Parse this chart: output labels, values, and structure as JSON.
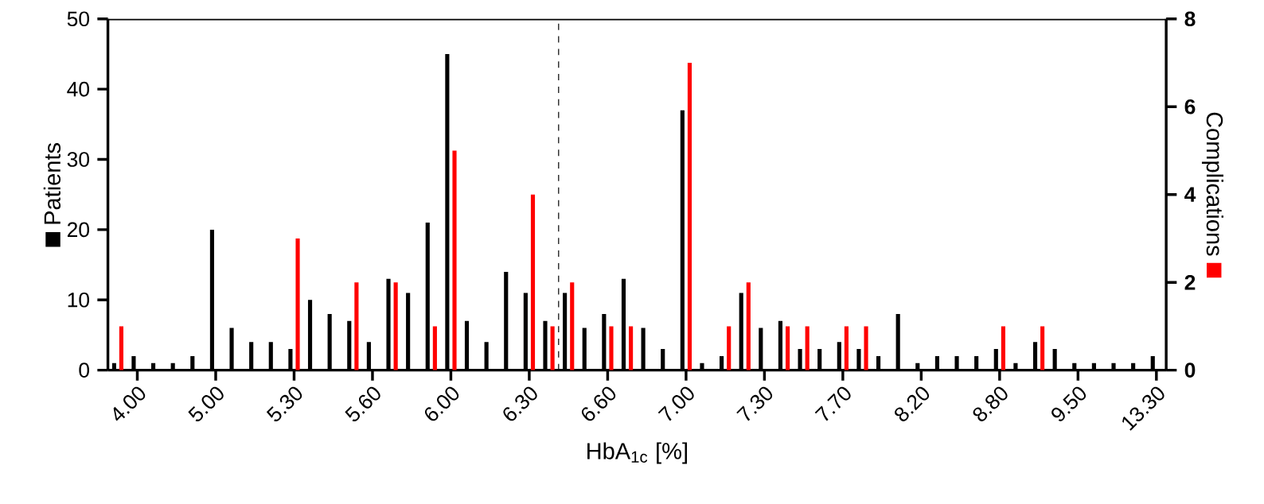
{
  "chart_data": {
    "type": "bar",
    "xlabel": "HbA$_{1c}$ [%]",
    "ylabel": "Patients",
    "y2label": "Complications",
    "categories": [
      null,
      "4.00",
      null,
      null,
      null,
      "5.00",
      null,
      null,
      null,
      "5.30",
      null,
      null,
      null,
      "5.60",
      null,
      null,
      null,
      "6.00",
      null,
      null,
      null,
      "6.30",
      null,
      null,
      null,
      "6.60",
      null,
      null,
      null,
      "7.00",
      null,
      null,
      null,
      "7.30",
      null,
      null,
      null,
      "7.70",
      null,
      null,
      null,
      "8.20",
      null,
      null,
      null,
      "8.80",
      null,
      null,
      null,
      "9.50",
      null,
      null,
      null,
      "13.30"
    ],
    "series": [
      {
        "color": "#000000",
        "axis": "y",
        "values": [
          1,
          2,
          1,
          1,
          2,
          20,
          6,
          4,
          4,
          3,
          10,
          8,
          7,
          4,
          13,
          11,
          21,
          45,
          7,
          4,
          14,
          11,
          7,
          11,
          6,
          8,
          13,
          6,
          3,
          37,
          1,
          2,
          11,
          6,
          7,
          3,
          3,
          4,
          3,
          2,
          8,
          1,
          2,
          2,
          2,
          3,
          1,
          4,
          3,
          1,
          1,
          1,
          1,
          2
        ]
      },
      {
        "color": "#ff0000",
        "axis": "y2",
        "values": [
          1,
          null,
          null,
          null,
          null,
          null,
          null,
          null,
          null,
          3,
          null,
          null,
          2,
          null,
          2,
          null,
          1,
          5,
          null,
          null,
          null,
          4,
          1,
          2,
          null,
          1,
          1,
          null,
          null,
          7,
          null,
          1,
          2,
          null,
          1,
          1,
          null,
          1,
          1,
          null,
          null,
          null,
          null,
          null,
          null,
          1,
          null,
          1,
          null,
          null,
          null,
          null,
          null,
          null
        ]
      }
    ],
    "ylim": [
      0,
      50
    ],
    "yticks": [
      0,
      10,
      20,
      30,
      40,
      50
    ],
    "y2lim": [
      0,
      8
    ],
    "y2ticks": [
      0,
      2,
      4,
      6,
      8
    ]
  }
}
